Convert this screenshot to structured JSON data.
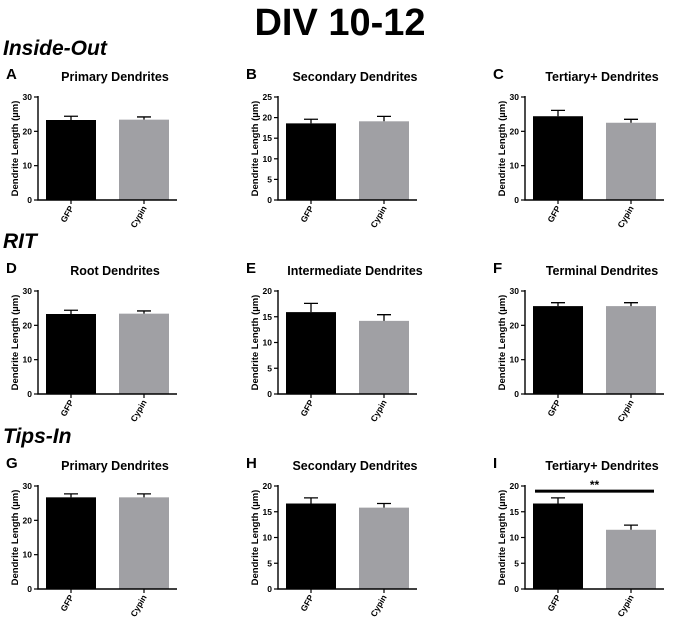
{
  "figure": {
    "title": "DIV 10-12",
    "sections": [
      "Inside-Out",
      "RIT",
      "Tips-In"
    ]
  },
  "chart_data": [
    {
      "type": "bar",
      "panel": "A",
      "section": "Inside-Out",
      "title": "Primary Dendrites",
      "ylabel": "Dendrite Length (µm)",
      "xlabel": "",
      "categories": [
        "GFP",
        "Cypin"
      ],
      "values": [
        23.3,
        23.4
      ],
      "errors": [
        1.1,
        0.8
      ],
      "colors": [
        "#000000",
        "#a0a0a4"
      ],
      "ylim": [
        0,
        30
      ],
      "yticks": [
        0,
        10,
        20,
        30
      ],
      "annotations": []
    },
    {
      "type": "bar",
      "panel": "B",
      "section": "Inside-Out",
      "title": "Secondary Dendrites",
      "ylabel": "Dendrite Length (µm)",
      "xlabel": "",
      "categories": [
        "GFP",
        "Cypin"
      ],
      "values": [
        18.6,
        19.1
      ],
      "errors": [
        1.0,
        1.2
      ],
      "colors": [
        "#000000",
        "#a0a0a4"
      ],
      "ylim": [
        0,
        25
      ],
      "yticks": [
        0,
        5,
        10,
        15,
        20,
        25
      ],
      "annotations": []
    },
    {
      "type": "bar",
      "panel": "C",
      "section": "Inside-Out",
      "title": "Tertiary+ Dendrites",
      "ylabel": "Dendrite Length (µm)",
      "xlabel": "",
      "categories": [
        "GFP",
        "Cypin"
      ],
      "values": [
        24.4,
        22.5
      ],
      "errors": [
        1.7,
        1.0
      ],
      "colors": [
        "#000000",
        "#a0a0a4"
      ],
      "ylim": [
        0,
        30
      ],
      "yticks": [
        0,
        10,
        20,
        30
      ],
      "annotations": []
    },
    {
      "type": "bar",
      "panel": "D",
      "section": "RIT",
      "title": "Root Dendrites",
      "ylabel": "Dendrite Length (µm)",
      "xlabel": "",
      "categories": [
        "GFP",
        "Cypin"
      ],
      "values": [
        23.3,
        23.4
      ],
      "errors": [
        1.1,
        0.8
      ],
      "colors": [
        "#000000",
        "#a0a0a4"
      ],
      "ylim": [
        0,
        30
      ],
      "yticks": [
        0,
        10,
        20,
        30
      ],
      "annotations": []
    },
    {
      "type": "bar",
      "panel": "E",
      "section": "RIT",
      "title": "Intermediate Dendrites",
      "ylabel": "Dendrite Length (µm)",
      "xlabel": "",
      "categories": [
        "GFP",
        "Cypin"
      ],
      "values": [
        15.9,
        14.2
      ],
      "errors": [
        1.7,
        1.2
      ],
      "colors": [
        "#000000",
        "#a0a0a4"
      ],
      "ylim": [
        0,
        20
      ],
      "yticks": [
        0,
        5,
        10,
        15,
        20
      ],
      "annotations": []
    },
    {
      "type": "bar",
      "panel": "F",
      "section": "RIT",
      "title": "Terminal Dendrites",
      "ylabel": "Dendrite Length (µm)",
      "xlabel": "",
      "categories": [
        "GFP",
        "Cypin"
      ],
      "values": [
        25.6,
        25.6
      ],
      "errors": [
        1.0,
        1.0
      ],
      "colors": [
        "#000000",
        "#a0a0a4"
      ],
      "ylim": [
        0,
        30
      ],
      "yticks": [
        0,
        10,
        20,
        30
      ],
      "annotations": []
    },
    {
      "type": "bar",
      "panel": "G",
      "section": "Tips-In",
      "title": "Primary Dendrites",
      "ylabel": "Dendrite Length (µm)",
      "xlabel": "",
      "categories": [
        "GFP",
        "Cypin"
      ],
      "values": [
        26.7,
        26.7
      ],
      "errors": [
        1.0,
        1.0
      ],
      "colors": [
        "#000000",
        "#a0a0a4"
      ],
      "ylim": [
        0,
        30
      ],
      "yticks": [
        0,
        10,
        20,
        30
      ],
      "annotations": []
    },
    {
      "type": "bar",
      "panel": "H",
      "section": "Tips-In",
      "title": "Secondary Dendrites",
      "ylabel": "Dendrite Length (µm)",
      "xlabel": "",
      "categories": [
        "GFP",
        "Cypin"
      ],
      "values": [
        16.6,
        15.8
      ],
      "errors": [
        1.1,
        0.8
      ],
      "colors": [
        "#000000",
        "#a0a0a4"
      ],
      "ylim": [
        0,
        20
      ],
      "yticks": [
        0,
        5,
        10,
        15,
        20
      ],
      "annotations": []
    },
    {
      "type": "bar",
      "panel": "I",
      "section": "Tips-In",
      "title": "Tertiary+ Dendrites",
      "ylabel": "Dendrite Length (µm)",
      "xlabel": "",
      "categories": [
        "GFP",
        "Cypin"
      ],
      "values": [
        16.6,
        11.5
      ],
      "errors": [
        1.1,
        0.9
      ],
      "colors": [
        "#000000",
        "#a0a0a4"
      ],
      "ylim": [
        0,
        20
      ],
      "yticks": [
        0,
        5,
        10,
        15,
        20
      ],
      "annotations": [
        {
          "text": "**",
          "from": 0,
          "to": 1,
          "y": 19.0
        }
      ]
    }
  ]
}
